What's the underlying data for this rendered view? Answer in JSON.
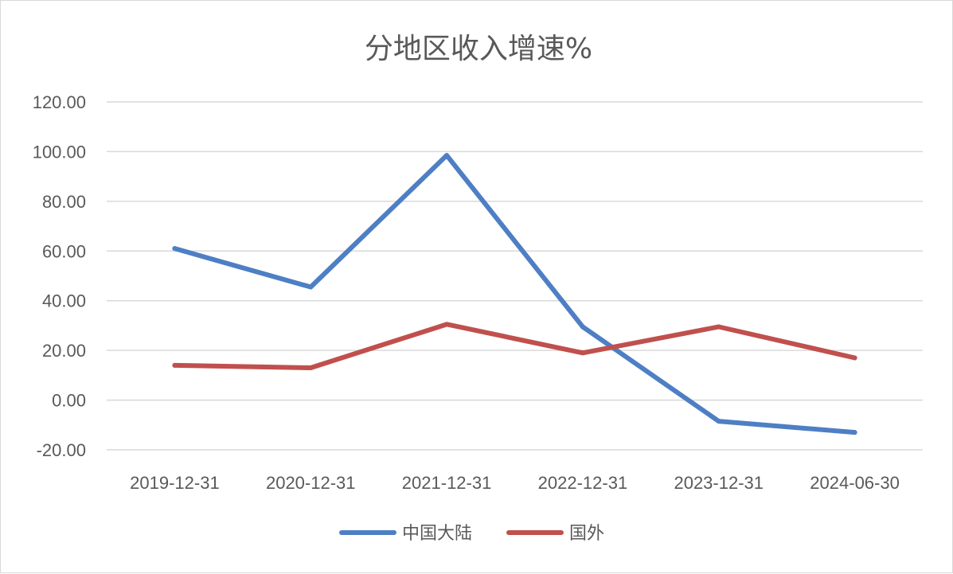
{
  "chart_data": {
    "type": "line",
    "title": "分地区收入增速%",
    "categories": [
      "2019-12-31",
      "2020-12-31",
      "2021-12-31",
      "2022-12-31",
      "2023-12-31",
      "2024-06-30"
    ],
    "series": [
      {
        "name": "中国大陆",
        "color": "#4e7fc4",
        "values": [
          61.0,
          45.5,
          98.5,
          29.5,
          -8.5,
          -13.0
        ]
      },
      {
        "name": "国外",
        "color": "#c0504d",
        "values": [
          14.0,
          13.0,
          30.5,
          19.0,
          29.5,
          17.0
        ]
      }
    ],
    "ylim": [
      -20,
      120
    ],
    "yticks": [
      "120.00",
      "100.00",
      "80.00",
      "60.00",
      "40.00",
      "20.00",
      "0.00",
      "-20.00"
    ],
    "ytick_values": [
      120,
      100,
      80,
      60,
      40,
      20,
      0,
      -20
    ],
    "grid": true,
    "legend": "bottom-center"
  }
}
